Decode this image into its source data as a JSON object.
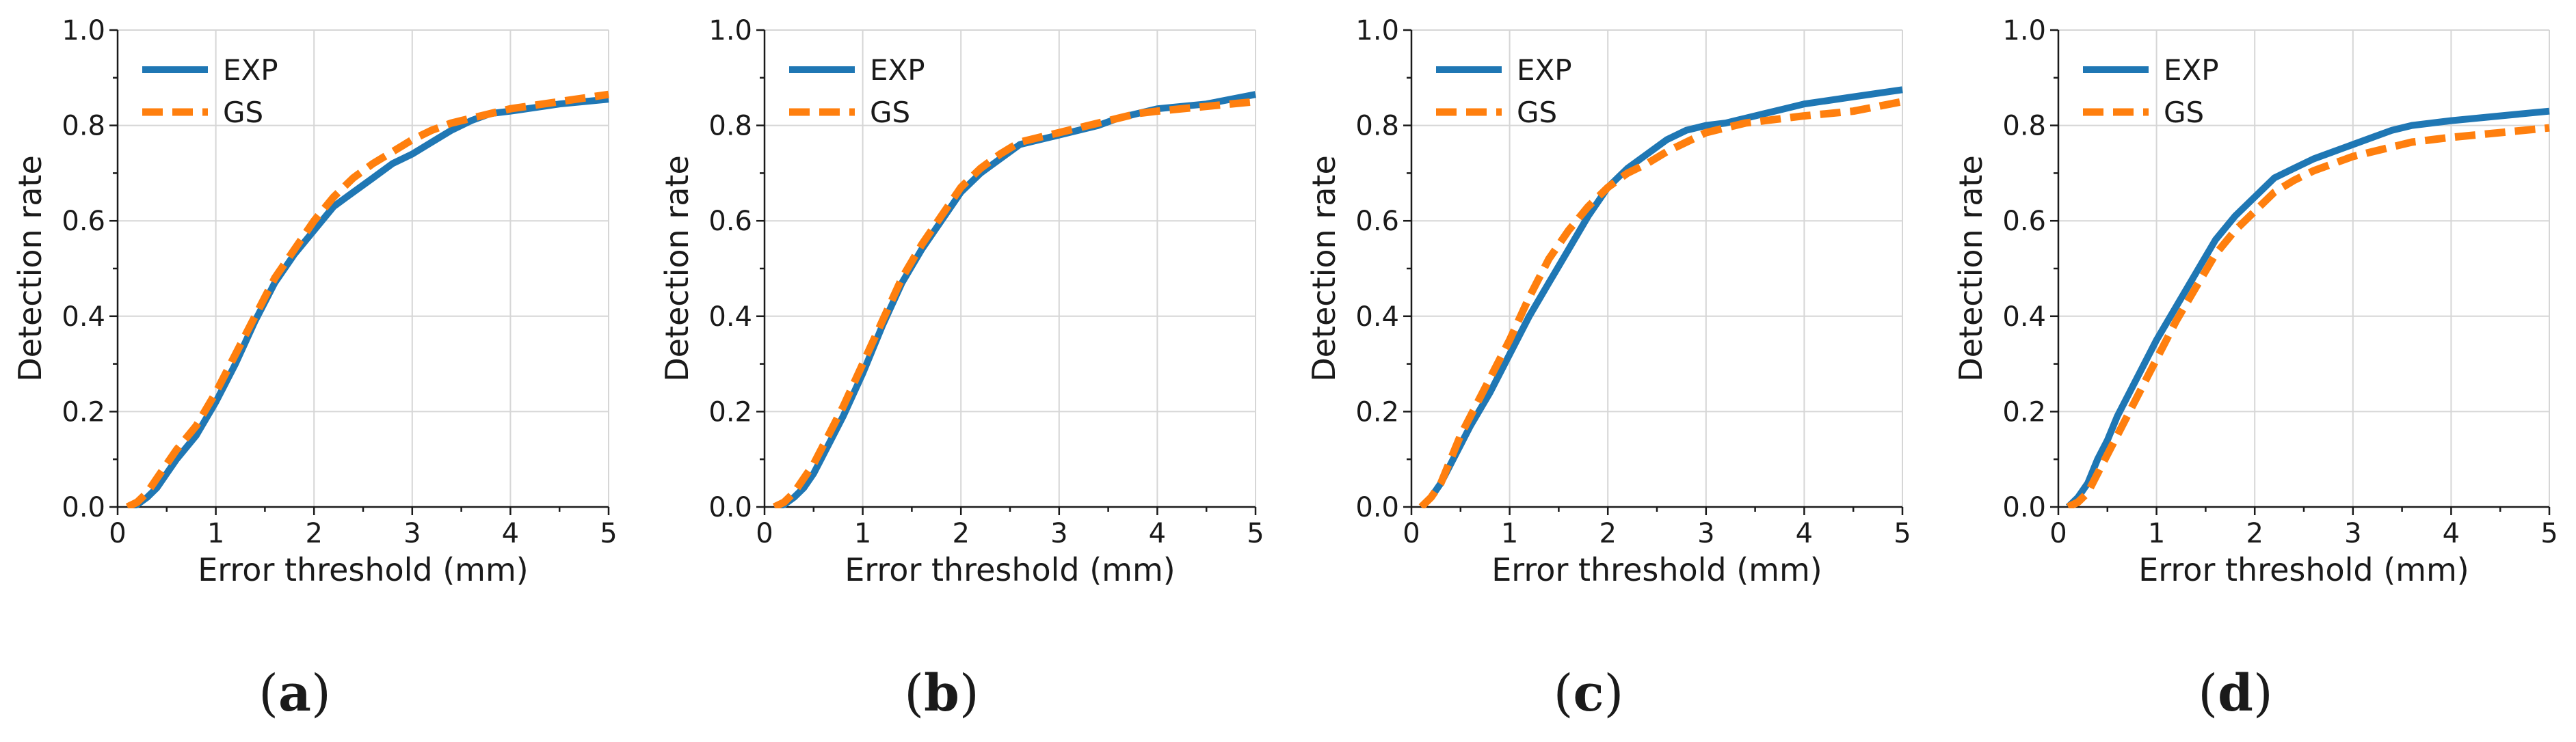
{
  "colors": {
    "exp": "#1f77b4",
    "gs": "#ff7f0e"
  },
  "chart_data": [
    {
      "type": "line",
      "panel_label": "a",
      "xlabel": "Error threshold (mm)",
      "ylabel": "Detection rate",
      "xlim": [
        0,
        5
      ],
      "ylim": [
        0,
        1.0
      ],
      "xticks": [
        "0",
        "1",
        "2",
        "3",
        "4",
        "5"
      ],
      "yticks": [
        "0.0",
        "0.2",
        "0.4",
        "0.6",
        "0.8",
        "1.0"
      ],
      "grid": true,
      "legend": "top-left",
      "series": [
        {
          "name": "EXP",
          "style": "solid",
          "x": [
            0.1,
            0.2,
            0.3,
            0.4,
            0.5,
            0.6,
            0.8,
            1.0,
            1.2,
            1.4,
            1.6,
            1.8,
            2.0,
            2.2,
            2.4,
            2.6,
            2.8,
            3.0,
            3.2,
            3.4,
            3.6,
            3.8,
            4.0,
            4.5,
            5.0
          ],
          "y": [
            0.0,
            0.005,
            0.02,
            0.04,
            0.07,
            0.1,
            0.15,
            0.22,
            0.3,
            0.39,
            0.47,
            0.53,
            0.58,
            0.63,
            0.66,
            0.69,
            0.72,
            0.74,
            0.765,
            0.79,
            0.81,
            0.825,
            0.83,
            0.845,
            0.855
          ]
        },
        {
          "name": "GS",
          "style": "dashed",
          "x": [
            0.1,
            0.2,
            0.3,
            0.4,
            0.5,
            0.6,
            0.8,
            1.0,
            1.2,
            1.4,
            1.6,
            1.8,
            2.0,
            2.2,
            2.4,
            2.6,
            2.8,
            3.0,
            3.2,
            3.4,
            3.6,
            3.8,
            4.0,
            4.5,
            5.0
          ],
          "y": [
            0.0,
            0.01,
            0.03,
            0.06,
            0.09,
            0.12,
            0.17,
            0.24,
            0.32,
            0.4,
            0.48,
            0.54,
            0.6,
            0.65,
            0.69,
            0.72,
            0.745,
            0.77,
            0.79,
            0.805,
            0.815,
            0.825,
            0.835,
            0.85,
            0.865
          ]
        }
      ]
    },
    {
      "type": "line",
      "panel_label": "b",
      "xlabel": "Error threshold (mm)",
      "ylabel": "Detection rate",
      "xlim": [
        0,
        5
      ],
      "ylim": [
        0,
        1.0
      ],
      "xticks": [
        "0",
        "1",
        "2",
        "3",
        "4",
        "5"
      ],
      "yticks": [
        "0.0",
        "0.2",
        "0.4",
        "0.6",
        "0.8",
        "1.0"
      ],
      "grid": true,
      "legend": "top-left",
      "series": [
        {
          "name": "EXP",
          "style": "solid",
          "x": [
            0.1,
            0.2,
            0.3,
            0.4,
            0.5,
            0.6,
            0.8,
            1.0,
            1.2,
            1.4,
            1.6,
            1.8,
            2.0,
            2.2,
            2.4,
            2.6,
            2.8,
            3.0,
            3.2,
            3.4,
            3.6,
            3.8,
            4.0,
            4.5,
            5.0
          ],
          "y": [
            0.0,
            0.005,
            0.02,
            0.04,
            0.07,
            0.11,
            0.19,
            0.28,
            0.38,
            0.47,
            0.54,
            0.6,
            0.66,
            0.7,
            0.73,
            0.76,
            0.77,
            0.78,
            0.79,
            0.8,
            0.815,
            0.825,
            0.835,
            0.845,
            0.865
          ]
        },
        {
          "name": "GS",
          "style": "dashed",
          "x": [
            0.1,
            0.2,
            0.3,
            0.4,
            0.5,
            0.6,
            0.8,
            1.0,
            1.2,
            1.4,
            1.6,
            1.8,
            2.0,
            2.2,
            2.4,
            2.6,
            2.8,
            3.0,
            3.2,
            3.4,
            3.6,
            3.8,
            4.0,
            4.5,
            5.0
          ],
          "y": [
            0.0,
            0.01,
            0.03,
            0.06,
            0.09,
            0.13,
            0.21,
            0.3,
            0.39,
            0.48,
            0.55,
            0.61,
            0.67,
            0.71,
            0.74,
            0.765,
            0.775,
            0.785,
            0.795,
            0.805,
            0.815,
            0.825,
            0.83,
            0.84,
            0.85
          ]
        }
      ]
    },
    {
      "type": "line",
      "panel_label": "c",
      "xlabel": "Error threshold (mm)",
      "ylabel": "Detection rate",
      "xlim": [
        0,
        5
      ],
      "ylim": [
        0,
        1.0
      ],
      "xticks": [
        "0",
        "1",
        "2",
        "3",
        "4",
        "5"
      ],
      "yticks": [
        "0.0",
        "0.2",
        "0.4",
        "0.6",
        "0.8",
        "1.0"
      ],
      "grid": true,
      "legend": "top-left",
      "series": [
        {
          "name": "EXP",
          "style": "solid",
          "x": [
            0.1,
            0.2,
            0.3,
            0.4,
            0.5,
            0.6,
            0.8,
            1.0,
            1.2,
            1.4,
            1.6,
            1.8,
            2.0,
            2.2,
            2.4,
            2.6,
            2.8,
            3.0,
            3.2,
            3.4,
            3.6,
            3.8,
            4.0,
            4.5,
            5.0
          ],
          "y": [
            0.0,
            0.02,
            0.05,
            0.09,
            0.13,
            0.17,
            0.24,
            0.32,
            0.4,
            0.47,
            0.54,
            0.61,
            0.67,
            0.71,
            0.74,
            0.77,
            0.79,
            0.8,
            0.805,
            0.815,
            0.825,
            0.835,
            0.845,
            0.86,
            0.875
          ]
        },
        {
          "name": "GS",
          "style": "dashed",
          "x": [
            0.1,
            0.2,
            0.3,
            0.4,
            0.5,
            0.6,
            0.8,
            1.0,
            1.2,
            1.4,
            1.6,
            1.8,
            2.0,
            2.2,
            2.4,
            2.6,
            2.8,
            3.0,
            3.2,
            3.4,
            3.6,
            3.8,
            4.0,
            4.5,
            5.0
          ],
          "y": [
            0.0,
            0.02,
            0.05,
            0.1,
            0.15,
            0.19,
            0.27,
            0.35,
            0.44,
            0.52,
            0.58,
            0.63,
            0.67,
            0.7,
            0.72,
            0.745,
            0.765,
            0.785,
            0.795,
            0.805,
            0.81,
            0.815,
            0.82,
            0.83,
            0.85
          ]
        }
      ]
    },
    {
      "type": "line",
      "panel_label": "d",
      "xlabel": "Error threshold (mm)",
      "ylabel": "Detection rate",
      "xlim": [
        0,
        5
      ],
      "ylim": [
        0,
        1.0
      ],
      "xticks": [
        "0",
        "1",
        "2",
        "3",
        "4",
        "5"
      ],
      "yticks": [
        "0.0",
        "0.2",
        "0.4",
        "0.6",
        "0.8",
        "1.0"
      ],
      "grid": true,
      "legend": "top-left",
      "series": [
        {
          "name": "EXP",
          "style": "solid",
          "x": [
            0.1,
            0.2,
            0.3,
            0.4,
            0.5,
            0.6,
            0.8,
            1.0,
            1.2,
            1.4,
            1.6,
            1.8,
            2.0,
            2.2,
            2.4,
            2.6,
            2.8,
            3.0,
            3.2,
            3.4,
            3.6,
            3.8,
            4.0,
            4.5,
            5.0
          ],
          "y": [
            0.0,
            0.02,
            0.05,
            0.1,
            0.14,
            0.19,
            0.27,
            0.35,
            0.42,
            0.49,
            0.56,
            0.61,
            0.65,
            0.69,
            0.71,
            0.73,
            0.745,
            0.76,
            0.775,
            0.79,
            0.8,
            0.805,
            0.81,
            0.82,
            0.83
          ]
        },
        {
          "name": "GS",
          "style": "dashed",
          "x": [
            0.1,
            0.2,
            0.3,
            0.4,
            0.5,
            0.6,
            0.8,
            1.0,
            1.2,
            1.4,
            1.6,
            1.8,
            2.0,
            2.2,
            2.4,
            2.6,
            2.8,
            3.0,
            3.2,
            3.4,
            3.6,
            3.8,
            4.0,
            4.5,
            5.0
          ],
          "y": [
            0.0,
            0.01,
            0.03,
            0.07,
            0.11,
            0.15,
            0.23,
            0.31,
            0.39,
            0.46,
            0.53,
            0.58,
            0.62,
            0.66,
            0.685,
            0.705,
            0.72,
            0.735,
            0.745,
            0.755,
            0.765,
            0.77,
            0.775,
            0.785,
            0.795
          ]
        }
      ]
    }
  ]
}
